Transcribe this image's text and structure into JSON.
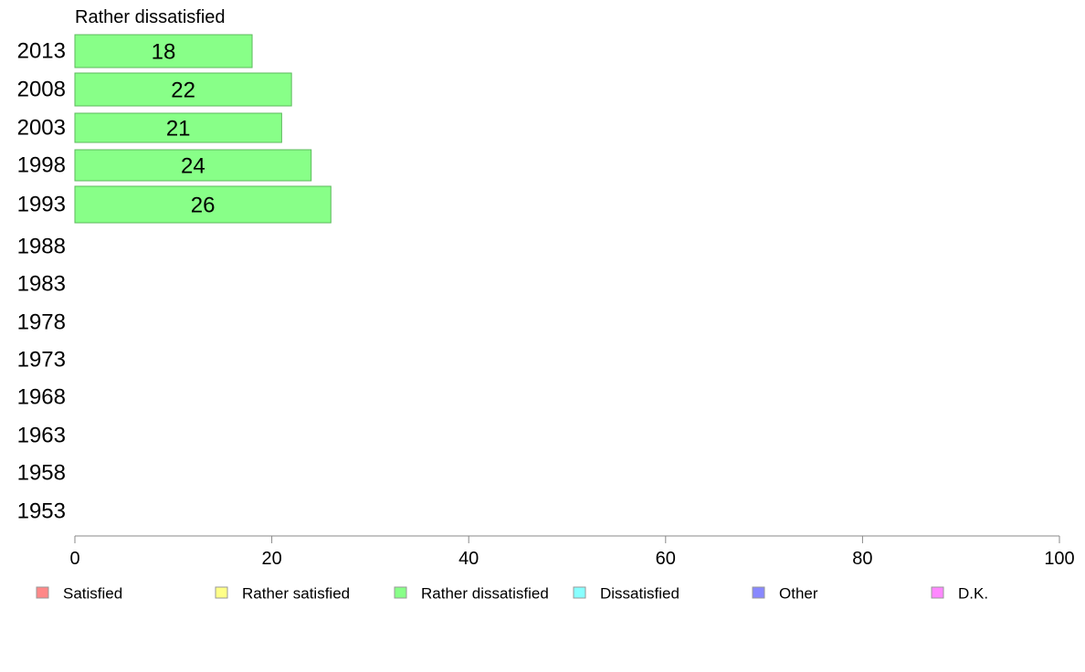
{
  "chart_data": {
    "type": "bar",
    "orientation": "horizontal",
    "title": "Rather dissatisfied",
    "categories": [
      "2013",
      "2008",
      "2003",
      "1998",
      "1993",
      "1988",
      "1983",
      "1978",
      "1973",
      "1968",
      "1963",
      "1958",
      "1953"
    ],
    "series": [
      {
        "name": "Rather dissatisfied",
        "values": [
          18,
          22,
          21,
          24,
          26,
          null,
          null,
          null,
          null,
          null,
          null,
          null,
          null
        ],
        "color": "#88ff88"
      }
    ],
    "xlim": [
      0,
      100
    ],
    "xticks": [
      "0",
      "20",
      "40",
      "60",
      "80",
      "100"
    ],
    "grid": false,
    "legend_position": "bottom",
    "legend": [
      {
        "label": "Satisfied",
        "color": "#ff8888"
      },
      {
        "label": "Rather satisfied",
        "color": "#ffff88"
      },
      {
        "label": "Rather dissatisfied",
        "color": "#88ff88"
      },
      {
        "label": "Dissatisfied",
        "color": "#88ffff"
      },
      {
        "label": "Other",
        "color": "#8888ff"
      },
      {
        "label": "D.K.",
        "color": "#ff88ff"
      }
    ]
  }
}
